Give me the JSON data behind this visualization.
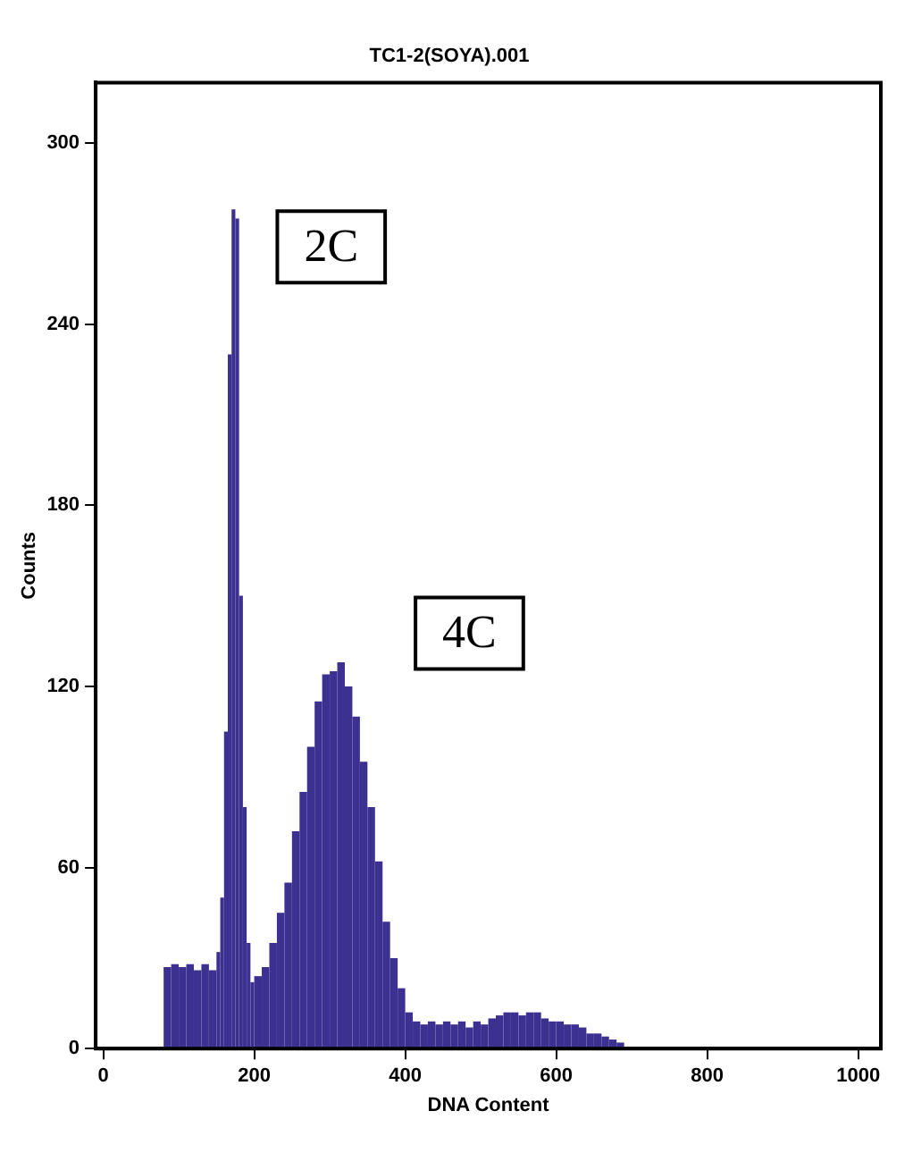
{
  "chart_data": {
    "type": "histogram",
    "title": "TC1-2(SOYA).001",
    "xlabel": "DNA Content",
    "ylabel": "Counts",
    "bins": [
      80,
      90,
      100,
      110,
      120,
      130,
      140,
      150,
      155,
      160,
      165,
      170,
      175,
      180,
      185,
      190,
      195,
      200,
      210,
      220,
      230,
      240,
      250,
      260,
      270,
      280,
      290,
      300,
      310,
      320,
      330,
      340,
      350,
      360,
      370,
      380,
      390,
      400,
      410,
      420,
      430,
      440,
      450,
      460,
      470,
      480,
      490,
      500,
      510,
      520,
      530,
      540,
      550,
      560,
      570,
      580,
      590,
      600,
      610,
      620,
      630,
      640,
      650,
      660,
      670,
      680,
      690
    ],
    "values": [
      27,
      28,
      27,
      28,
      26,
      28,
      26,
      32,
      50,
      105,
      230,
      278,
      275,
      150,
      80,
      35,
      22,
      24,
      27,
      35,
      45,
      55,
      72,
      85,
      100,
      115,
      124,
      125,
      128,
      120,
      110,
      95,
      80,
      62,
      42,
      30,
      20,
      12,
      9,
      8,
      9,
      8,
      9,
      8,
      9,
      7,
      9,
      8,
      10,
      11,
      12,
      12,
      11,
      12,
      12,
      10,
      9,
      9,
      8,
      8,
      7,
      5,
      5,
      4,
      3,
      2
    ],
    "color": "#3c3190",
    "xlim": [
      -10,
      1030
    ],
    "xticks": [
      0,
      200,
      400,
      600,
      800,
      1000
    ],
    "ylim": [
      0,
      320
    ],
    "yticks": [
      0,
      60,
      120,
      180,
      240,
      300
    ],
    "grid": false,
    "annotations": [
      "2C",
      "4C"
    ]
  }
}
